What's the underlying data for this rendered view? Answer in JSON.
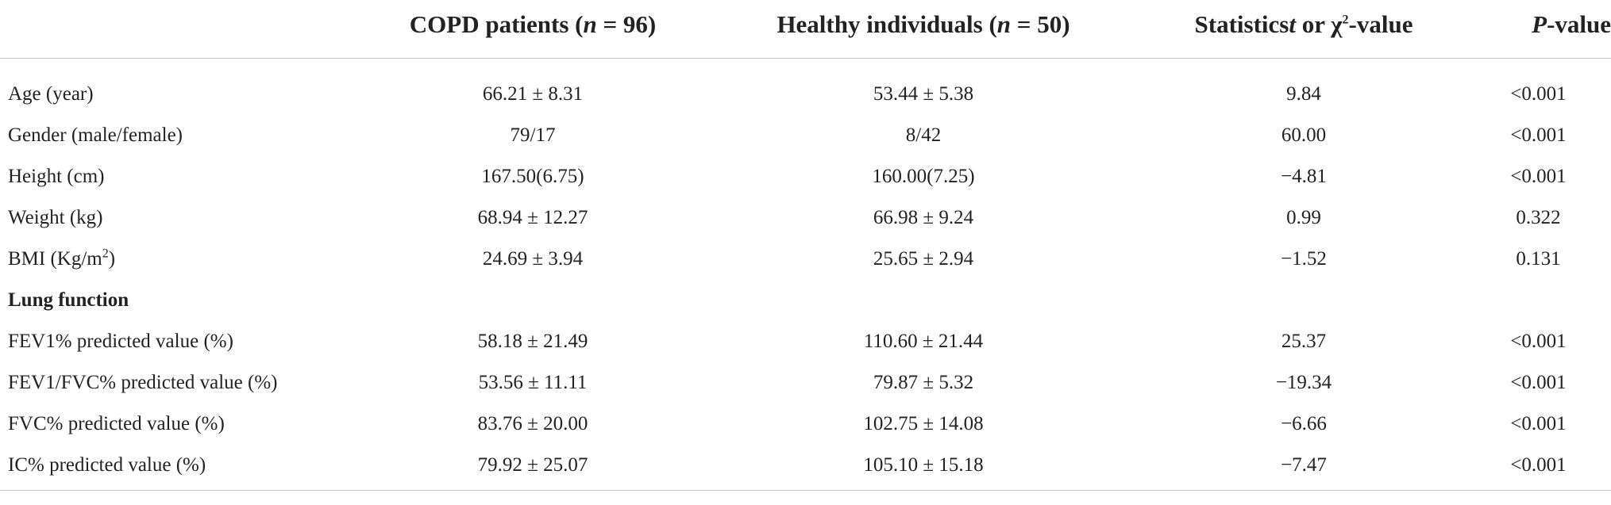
{
  "header": {
    "copd": {
      "prefix": "COPD patients (",
      "n": "n",
      "suffix": " = 96)"
    },
    "healthy": {
      "prefix": "Healthy individuals (",
      "n": "n",
      "suffix": " = 50)"
    },
    "stat": {
      "prefix": "Statistics",
      "t": "t",
      "middle": " or χ",
      "sup": "2",
      "suffix": "-value"
    },
    "p": {
      "p": "P",
      "suffix": "-value"
    }
  },
  "rows": [
    {
      "label": "Age (year)",
      "copd": "66.21 ± 8.31",
      "healthy": "53.44 ± 5.38",
      "stat": "9.84",
      "p": "<0.001"
    },
    {
      "label": "Gender (male/female)",
      "copd": "79/17",
      "healthy": "8/42",
      "stat": "60.00",
      "p": "<0.001"
    },
    {
      "label": "Height (cm)",
      "copd": "167.50(6.75)",
      "healthy": "160.00(7.25)",
      "stat": "−4.81",
      "p": "<0.001"
    },
    {
      "label": "Weight (kg)",
      "copd": "68.94 ± 12.27",
      "healthy": "66.98 ± 9.24",
      "stat": "0.99",
      "p": "0.322"
    },
    {
      "label_prefix": "BMI (Kg/m",
      "label_sup": "2",
      "label_suffix": ")",
      "copd": "24.69 ± 3.94",
      "healthy": "25.65 ± 2.94",
      "stat": "−1.52",
      "p": "0.131"
    },
    {
      "section": "Lung function"
    },
    {
      "label": "FEV1% predicted value (%)",
      "copd": "58.18 ± 21.49",
      "healthy": "110.60 ± 21.44",
      "stat": "25.37",
      "p": "<0.001"
    },
    {
      "label": "FEV1/FVC% predicted value (%)",
      "copd": "53.56 ± 11.11",
      "healthy": "79.87 ± 5.32",
      "stat": "−19.34",
      "p": "<0.001"
    },
    {
      "label": "FVC% predicted value (%)",
      "copd": "83.76 ± 20.00",
      "healthy": "102.75 ± 14.08",
      "stat": "−6.66",
      "p": "<0.001"
    },
    {
      "label": "IC% predicted value (%)",
      "copd": "79.92 ± 25.07",
      "healthy": "105.10 ± 15.18",
      "stat": "−7.47",
      "p": "<0.001"
    }
  ]
}
